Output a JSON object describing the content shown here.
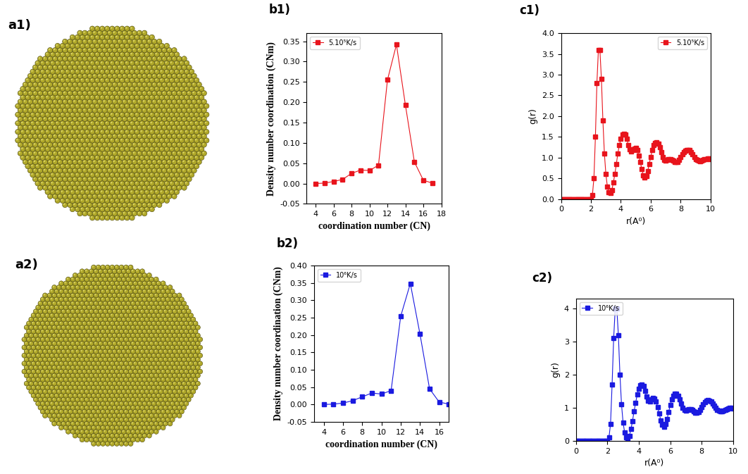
{
  "chart_data": [
    {
      "type": "image",
      "panel": "a1)",
      "color": "#b0a82a"
    },
    {
      "type": "line",
      "panel": "b1)",
      "x_label": "coordination number (CN)",
      "y_label": "Density number coordination (CNm)",
      "legend": "upper left",
      "marker": "square",
      "series": [
        {
          "name": "5.10⁵K/s",
          "color": "#e8141c",
          "x": [
            4,
            5,
            6,
            7,
            8,
            9,
            10,
            11,
            12,
            13,
            14,
            15,
            16,
            17
          ],
          "values": [
            0.0,
            0.001,
            0.005,
            0.01,
            0.025,
            0.033,
            0.032,
            0.045,
            0.255,
            0.342,
            0.193,
            0.053,
            0.008,
            0.001
          ]
        }
      ],
      "xlim": [
        3,
        18
      ],
      "xticks": [
        4,
        6,
        8,
        10,
        12,
        14,
        16,
        18
      ],
      "ylim": [
        -0.05,
        0.37
      ],
      "yticks": [
        {
          "value": -0.05,
          "label": "-0.05"
        },
        {
          "value": 0.0,
          "label": "0.00"
        },
        {
          "value": 0.05,
          "label": "0.05"
        },
        {
          "value": 0.1,
          "label": "0.10"
        },
        {
          "value": 0.15,
          "label": "0.15"
        },
        {
          "value": 0.2,
          "label": "0.20"
        },
        {
          "value": 0.25,
          "label": "0.25"
        },
        {
          "value": 0.3,
          "label": "0.30"
        },
        {
          "value": 0.35,
          "label": "0.35"
        }
      ]
    },
    {
      "type": "line",
      "panel": "c1)",
      "x_label": "r(A⁰)",
      "y_label": "g(r)",
      "legend": "upper right",
      "marker": "square",
      "series": [
        {
          "name": "5.10⁵K/s",
          "color": "#e8141c",
          "x": [
            0.0,
            0.1,
            0.2,
            0.3,
            0.4,
            0.5,
            0.6,
            0.7,
            0.8,
            0.9,
            1.0,
            1.1,
            1.2,
            1.3,
            1.4,
            1.5,
            1.6,
            1.7,
            1.8,
            1.9,
            2.0,
            2.1,
            2.2,
            2.3,
            2.4,
            2.5,
            2.6,
            2.7,
            2.8,
            2.9,
            3.0,
            3.1,
            3.2,
            3.3,
            3.4,
            3.5,
            3.6,
            3.7,
            3.8,
            3.9,
            4.0,
            4.1,
            4.2,
            4.3,
            4.4,
            4.5,
            4.6,
            4.7,
            4.8,
            4.9,
            5.0,
            5.1,
            5.2,
            5.3,
            5.4,
            5.5,
            5.6,
            5.7,
            5.8,
            5.9,
            6.0,
            6.1,
            6.2,
            6.3,
            6.4,
            6.5,
            6.6,
            6.7,
            6.8,
            6.9,
            7.0,
            7.1,
            7.2,
            7.3,
            7.4,
            7.5,
            7.6,
            7.7,
            7.8,
            7.9,
            8.0,
            8.1,
            8.2,
            8.3,
            8.4,
            8.5,
            8.6,
            8.7,
            8.8,
            8.9,
            9.0,
            9.1,
            9.2,
            9.3,
            9.4,
            9.5,
            9.6,
            9.7,
            9.8,
            9.9,
            10.0
          ],
          "values": [
            0,
            0,
            0,
            0,
            0,
            0,
            0,
            0,
            0,
            0,
            0,
            0,
            0,
            0,
            0,
            0,
            0,
            0,
            0,
            0,
            0.0,
            0.1,
            0.5,
            1.5,
            2.8,
            3.6,
            3.6,
            2.9,
            1.9,
            1.1,
            0.6,
            0.3,
            0.17,
            0.15,
            0.22,
            0.4,
            0.6,
            0.85,
            1.1,
            1.3,
            1.45,
            1.55,
            1.58,
            1.55,
            1.45,
            1.3,
            1.2,
            1.15,
            1.18,
            1.22,
            1.23,
            1.18,
            1.05,
            0.9,
            0.72,
            0.58,
            0.52,
            0.55,
            0.68,
            0.85,
            1.02,
            1.18,
            1.3,
            1.36,
            1.37,
            1.33,
            1.25,
            1.13,
            1.02,
            0.95,
            0.93,
            0.95,
            0.97,
            0.97,
            0.95,
            0.93,
            0.9,
            0.89,
            0.9,
            0.95,
            1.02,
            1.08,
            1.13,
            1.17,
            1.19,
            1.19,
            1.18,
            1.14,
            1.08,
            1.02,
            0.97,
            0.94,
            0.92,
            0.91,
            0.92,
            0.94,
            0.96,
            0.97,
            0.98,
            0.98,
            0.97
          ]
        }
      ],
      "xlim": [
        0,
        10
      ],
      "xticks": [
        0,
        2,
        4,
        6,
        8,
        10
      ],
      "ylim": [
        0.0,
        4.0
      ],
      "yticks": [
        0.0,
        0.5,
        1.0,
        1.5,
        2.0,
        2.5,
        3.0,
        3.5,
        4.0
      ]
    },
    {
      "type": "image",
      "panel": "a2)",
      "color": "#b0a82a"
    },
    {
      "type": "line",
      "panel": "b2)",
      "x_label": "coordination number (CN)",
      "y_label": "Density number coordination (CNm)",
      "legend": "upper left",
      "marker": "square",
      "series": [
        {
          "name": "10⁶K/s",
          "color": "#1a1ae0",
          "x": [
            4,
            5,
            6,
            7,
            8,
            9,
            10,
            11,
            12,
            13,
            14,
            15,
            16,
            17
          ],
          "values": [
            0.0,
            0.001,
            0.004,
            0.011,
            0.022,
            0.033,
            0.03,
            0.04,
            0.254,
            0.348,
            0.203,
            0.045,
            0.007,
            0.001
          ]
        }
      ],
      "xlim": [
        3,
        17
      ],
      "xticks": [
        4,
        6,
        8,
        10,
        12,
        14,
        16
      ],
      "ylim": [
        -0.05,
        0.4
      ],
      "yticks": [
        {
          "value": -0.05,
          "label": "-0.05"
        },
        {
          "value": 0.0,
          "label": "0.00"
        },
        {
          "value": 0.05,
          "label": "0.05"
        },
        {
          "value": 0.1,
          "label": "0.10"
        },
        {
          "value": 0.15,
          "label": "0.15"
        },
        {
          "value": 0.2,
          "label": "0.20"
        },
        {
          "value": 0.25,
          "label": "0.25"
        },
        {
          "value": 0.3,
          "label": "0.30"
        },
        {
          "value": 0.35,
          "label": "0.35"
        },
        {
          "value": 0.4,
          "label": "0.40"
        }
      ]
    },
    {
      "type": "line",
      "panel": "c2)",
      "x_label": "r(A⁰)",
      "y_label": "g(r)",
      "legend": "upper left",
      "marker": "square",
      "series": [
        {
          "name": "10⁶K/s",
          "color": "#1a1ae0",
          "x": [
            0.0,
            0.1,
            0.2,
            0.3,
            0.4,
            0.5,
            0.6,
            0.7,
            0.8,
            0.9,
            1.0,
            1.1,
            1.2,
            1.3,
            1.4,
            1.5,
            1.6,
            1.7,
            1.8,
            1.9,
            2.0,
            2.1,
            2.2,
            2.3,
            2.4,
            2.5,
            2.6,
            2.7,
            2.8,
            2.9,
            3.0,
            3.1,
            3.2,
            3.3,
            3.4,
            3.5,
            3.6,
            3.7,
            3.8,
            3.9,
            4.0,
            4.1,
            4.2,
            4.3,
            4.4,
            4.5,
            4.6,
            4.7,
            4.8,
            4.9,
            5.0,
            5.1,
            5.2,
            5.3,
            5.4,
            5.5,
            5.6,
            5.7,
            5.8,
            5.9,
            6.0,
            6.1,
            6.2,
            6.3,
            6.4,
            6.5,
            6.6,
            6.7,
            6.8,
            6.9,
            7.0,
            7.1,
            7.2,
            7.3,
            7.4,
            7.5,
            7.6,
            7.7,
            7.8,
            7.9,
            8.0,
            8.1,
            8.2,
            8.3,
            8.4,
            8.5,
            8.6,
            8.7,
            8.8,
            8.9,
            9.0,
            9.1,
            9.2,
            9.3,
            9.4,
            9.5,
            9.6,
            9.7,
            9.8,
            9.9,
            10.0
          ],
          "values": [
            0,
            0,
            0,
            0,
            0,
            0,
            0,
            0,
            0,
            0,
            0,
            0,
            0,
            0,
            0,
            0,
            0,
            0,
            0,
            0,
            0.0,
            0.1,
            0.5,
            1.7,
            3.1,
            4.0,
            4.0,
            3.2,
            2.0,
            1.1,
            0.55,
            0.25,
            0.1,
            0.08,
            0.15,
            0.35,
            0.6,
            0.9,
            1.15,
            1.4,
            1.58,
            1.68,
            1.7,
            1.65,
            1.5,
            1.33,
            1.22,
            1.2,
            1.25,
            1.3,
            1.28,
            1.2,
            1.02,
            0.82,
            0.62,
            0.48,
            0.43,
            0.5,
            0.66,
            0.87,
            1.08,
            1.25,
            1.36,
            1.42,
            1.42,
            1.36,
            1.26,
            1.13,
            1.0,
            0.93,
            0.91,
            0.93,
            0.96,
            0.96,
            0.93,
            0.89,
            0.85,
            0.84,
            0.87,
            0.94,
            1.03,
            1.11,
            1.17,
            1.21,
            1.23,
            1.22,
            1.19,
            1.13,
            1.06,
            0.99,
            0.94,
            0.91,
            0.9,
            0.9,
            0.92,
            0.94,
            0.96,
            0.98,
            0.99,
            0.99,
            0.98
          ]
        }
      ],
      "xlim": [
        0,
        10
      ],
      "xticks": [
        0,
        2,
        4,
        6,
        8,
        10
      ],
      "ylim": [
        0,
        4.3
      ],
      "yticks": [
        0,
        1,
        2,
        3,
        4
      ]
    }
  ]
}
